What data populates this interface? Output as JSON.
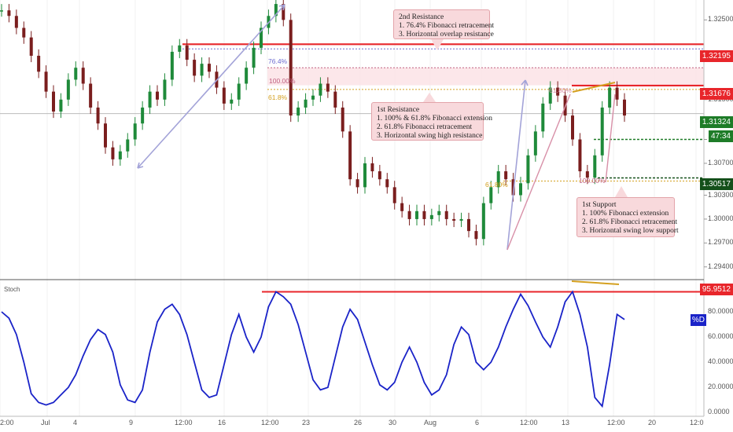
{
  "chart_data": [
    {
      "type": "candlestick",
      "pair_hint": "",
      "price_axis": {
        "ticks": [
          "1.32500",
          "1.32000",
          "1.31500",
          "1.31000",
          "1.30700",
          "1.30300",
          "1.30000",
          "1.29700",
          "1.29400"
        ],
        "min": 1.2925,
        "max": 1.3275
      },
      "time_axis": {
        "ticks": [
          "2:00",
          "Jul",
          "4",
          "9",
          "12:00",
          "16",
          "12:00",
          "23",
          "26",
          "30",
          "Aug",
          "6",
          "12:00",
          "13",
          "12:00",
          "20",
          "12:0"
        ]
      },
      "price_tags": {
        "res2": "1.32195",
        "res1": "1.31676",
        "current": "1.31324",
        "countdown": "47:34",
        "support": "1.30517"
      },
      "levels": {
        "res2": 1.32195,
        "res1": 1.31676,
        "current": 1.31324,
        "green_dashed": 1.31,
        "support": 1.30517
      },
      "fib_labels": [
        "76.4%",
        "100.00%",
        "61.8%",
        "61.80%",
        "61.80%",
        "100.00%"
      ],
      "annotations": {
        "res2": [
          "2nd Resistance",
          "1. 76.4% Fibonacci retracement",
          "3. Horizontal overlap resistance"
        ],
        "res1": [
          "1st Resistance",
          "1. 100% & 61.8% Fibonacci extension",
          "2. 61.8% Fibonacci retracement",
          "3. Horizontal swing high resistance"
        ],
        "sup1": [
          "1st Support",
          "1. 100% Fibonacci extension",
          "2.  61.8% Fibonacci retracement",
          "3. Horizontal swing low support"
        ]
      },
      "series_price": [
        1.3262,
        1.3255,
        1.324,
        1.3228,
        1.3205,
        1.3185,
        1.316,
        1.3135,
        1.315,
        1.3175,
        1.319,
        1.317,
        1.314,
        1.312,
        1.309,
        1.3075,
        1.3085,
        1.31,
        1.312,
        1.314,
        1.316,
        1.315,
        1.3175,
        1.321,
        1.3218,
        1.32,
        1.318,
        1.3195,
        1.3185,
        1.3165,
        1.3145,
        1.315,
        1.317,
        1.319,
        1.3215,
        1.324,
        1.3255,
        1.327,
        1.325,
        1.313,
        1.314,
        1.315,
        1.3155,
        1.317,
        1.316,
        1.314,
        1.311,
        1.305,
        1.304,
        1.307,
        1.306,
        1.305,
        1.304,
        1.302,
        1.301,
        1.3,
        1.301,
        1.3,
        1.3005,
        1.301,
        1.3,
        1.2998,
        1.3,
        1.2985,
        1.2975,
        1.302,
        1.304,
        1.306,
        1.305,
        1.303,
        1.3045,
        1.308,
        1.311,
        1.3145,
        1.3165,
        1.3155,
        1.313,
        1.31,
        1.306,
        1.3052,
        1.308,
        1.314,
        1.3165,
        1.315,
        1.313
      ]
    },
    {
      "type": "line",
      "indicator": "Stoch",
      "legend_tag": "%D",
      "level_tag": "95.9512",
      "level": 95.9512,
      "y_axis": {
        "ticks": [
          "80.0000",
          "60.0000",
          "40.0000",
          "20.0000",
          "0.0000"
        ],
        "min": -3,
        "max": 105
      },
      "values": [
        80,
        75,
        62,
        40,
        15,
        8,
        6,
        8,
        14,
        20,
        30,
        45,
        58,
        66,
        62,
        48,
        22,
        10,
        8,
        18,
        48,
        72,
        82,
        86,
        78,
        62,
        40,
        18,
        12,
        14,
        38,
        62,
        78,
        60,
        48,
        60,
        84,
        96,
        92,
        86,
        70,
        48,
        26,
        18,
        20,
        44,
        68,
        82,
        74,
        56,
        38,
        22,
        18,
        24,
        40,
        52,
        40,
        24,
        14,
        18,
        30,
        54,
        68,
        62,
        40,
        34,
        40,
        52,
        68,
        82,
        94,
        85,
        72,
        60,
        52,
        68,
        88,
        96,
        78,
        52,
        12,
        5,
        38,
        78,
        74
      ]
    }
  ]
}
